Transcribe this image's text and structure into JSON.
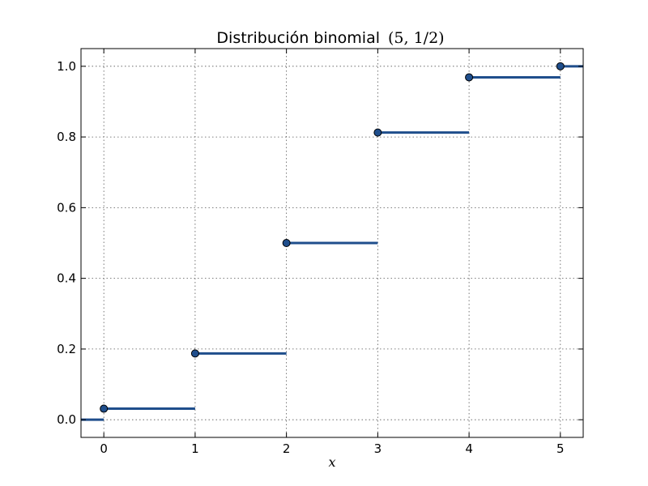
{
  "chart_data": {
    "type": "line",
    "subtype": "step-cdf",
    "title": "Distribución binomial",
    "title_math": "(5, 1/2)",
    "xlabel": "x",
    "ylabel": "",
    "xlim": [
      -0.25,
      5.25
    ],
    "ylim": [
      -0.05,
      1.05
    ],
    "xticks": [
      "0",
      "1",
      "2",
      "3",
      "4",
      "5"
    ],
    "yticks": [
      "0.0",
      "0.2",
      "0.4",
      "0.6",
      "0.8",
      "1.0"
    ],
    "grid": true,
    "legend": "none",
    "series": [
      {
        "color": "#1f4e8c",
        "x": [
          0,
          1,
          2,
          3,
          4,
          5
        ],
        "y": [
          0.03125,
          0.1875,
          0.5,
          0.8125,
          0.96875,
          1.0
        ],
        "left_value": 0.0
      }
    ]
  }
}
